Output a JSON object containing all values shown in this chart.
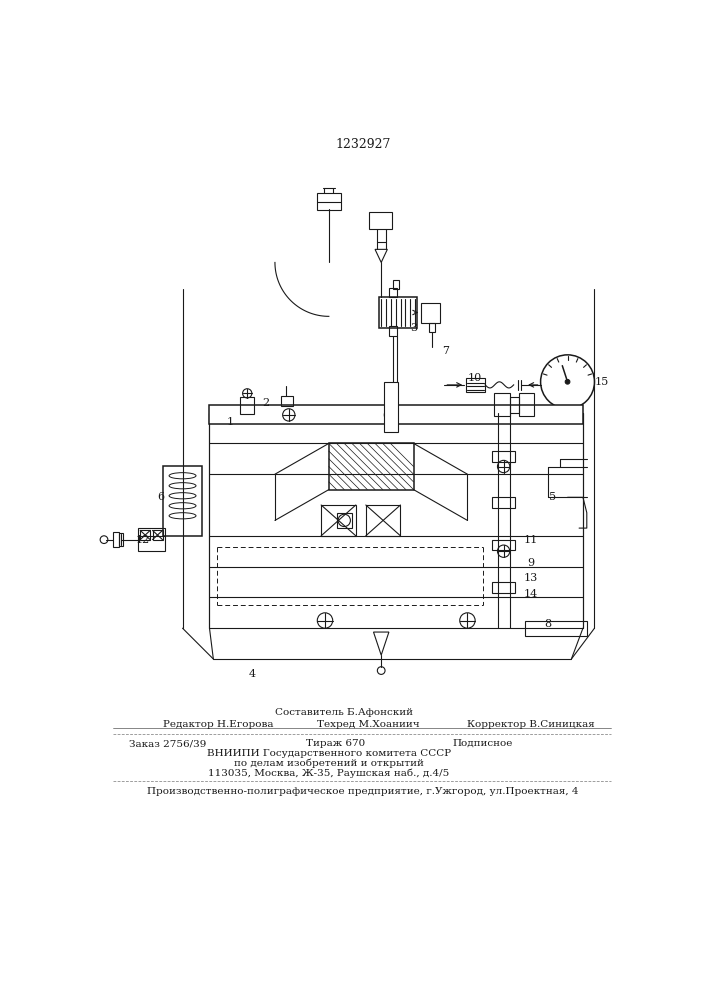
{
  "patent_number": "1232927",
  "background_color": "#ffffff",
  "footer": {
    "line1_center_top": "Составитель Б.Афонский",
    "line1_left": "Редактор Н.Егорова",
    "line1_center_bottom": "Техред М.Хоаниич",
    "line1_right": "Корректор В.Синицкая",
    "line2_col1": "Заказ 2756/39",
    "line2_col2": "Тираж 670",
    "line2_col3": "Подписное",
    "line3": "ВНИИПИ Государственного комитета СССР",
    "line4": "по делам изобретений и открытий",
    "line5": "113035, Москва, Ж-35, Раушская наб., д.4/5",
    "line6": "Производственно-полиграфическое предприятие, г.Ужгород, ул.Проектная, 4"
  }
}
